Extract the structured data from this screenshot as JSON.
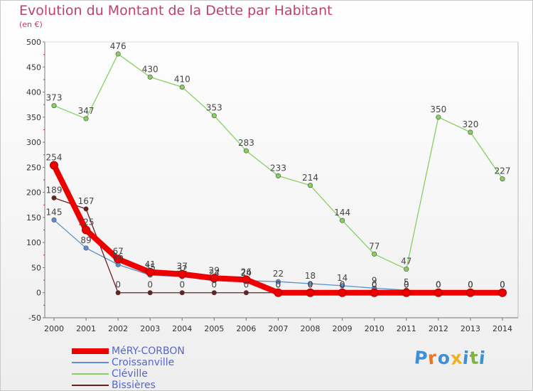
{
  "title": "Evolution du Montant de la Dette par Habitant",
  "unit": "(en €)",
  "logo": {
    "text": "Proxiti",
    "colors": [
      "#3d8fd6",
      "#e8762b",
      "#3d8fd6",
      "#f0b020",
      "#3d8fd6",
      "#7cb342",
      "#3d8fd6"
    ]
  },
  "chart_data": {
    "type": "line",
    "x": [
      "2000",
      "2001",
      "2002",
      "2003",
      "2004",
      "2005",
      "2006",
      "2007",
      "2008",
      "2009",
      "2010",
      "2011",
      "2012",
      "2013",
      "2014"
    ],
    "ylim": [
      -50,
      500
    ],
    "yticks": [
      -50,
      0,
      50,
      100,
      150,
      200,
      250,
      300,
      350,
      400,
      450,
      500
    ],
    "grid": false,
    "legend": "bottom-left",
    "series": [
      {
        "name": "MéRY-CORBON",
        "color": "#ee0000",
        "values": [
          254,
          125,
          67,
          41,
          37,
          29,
          26,
          0,
          0,
          0,
          0,
          0,
          0,
          0,
          0
        ],
        "labels": [
          "254",
          "125",
          "67",
          "41",
          "37",
          "29",
          "26",
          "0",
          "0",
          "0",
          "0",
          "0",
          "0",
          "0",
          "0"
        ]
      },
      {
        "name": "Croissanville",
        "color": "#5a8fd0",
        "values": [
          145,
          89,
          56,
          35,
          32,
          24,
          24,
          22,
          18,
          14,
          9,
          5,
          0,
          0,
          0
        ],
        "labels": [
          "145",
          "89",
          "56",
          "35",
          "32",
          "24",
          "24",
          "22",
          "18",
          "14",
          "9",
          "5",
          "0",
          "0",
          "0"
        ]
      },
      {
        "name": "Cléville",
        "color": "#88d060",
        "values": [
          373,
          347,
          476,
          430,
          410,
          353,
          283,
          233,
          214,
          144,
          77,
          47,
          350,
          320,
          227
        ],
        "labels": [
          "373",
          "347",
          "476",
          "430",
          "410",
          "353",
          "283",
          "233",
          "214",
          "144",
          "77",
          "47",
          "350",
          "320",
          "227"
        ]
      },
      {
        "name": "Bissières",
        "color": "#6a2020",
        "values": [
          189,
          167,
          0,
          0,
          0,
          0,
          0,
          0,
          0,
          0,
          0,
          0,
          0,
          0,
          0
        ],
        "labels": [
          "189",
          "167",
          "0",
          "0",
          "0",
          "0",
          "0",
          "0",
          "0",
          "0",
          "0",
          "0",
          "0",
          "0",
          "0"
        ]
      }
    ]
  }
}
